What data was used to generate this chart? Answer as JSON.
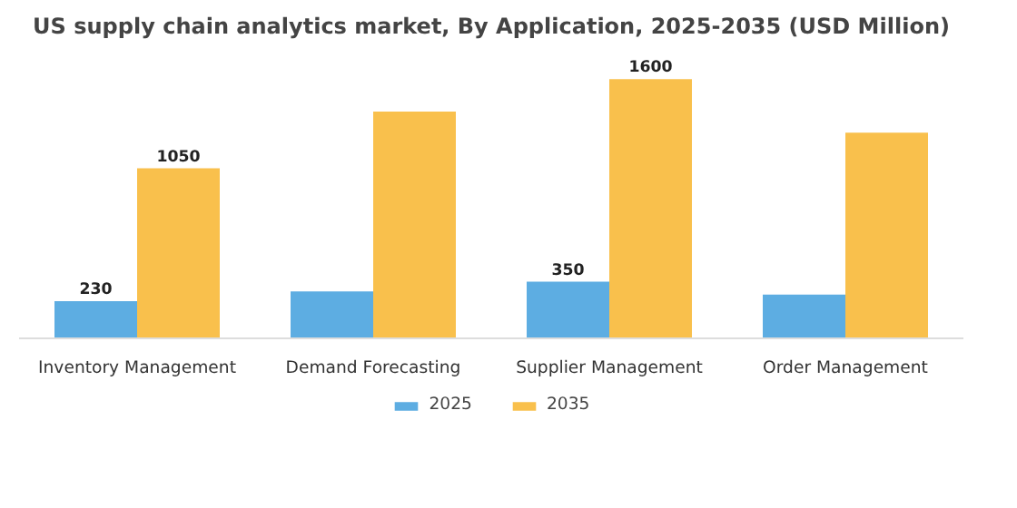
{
  "chart_data": {
    "type": "bar",
    "title": "US supply chain analytics market, By Application, 2025-2035 (USD Million)",
    "categories": [
      "Inventory Management",
      "Demand Forecasting",
      "Supplier Management",
      "Order Management"
    ],
    "series": [
      {
        "name": "2025",
        "color": "#5dade2",
        "values": [
          230,
          290,
          350,
          270
        ],
        "value_labels": [
          "230",
          null,
          "350",
          null
        ]
      },
      {
        "name": "2035",
        "color": "#f9c04c",
        "values": [
          1050,
          1400,
          1600,
          1270
        ],
        "value_labels": [
          "1050",
          null,
          "1600",
          null
        ]
      }
    ],
    "legend": "bottom"
  }
}
